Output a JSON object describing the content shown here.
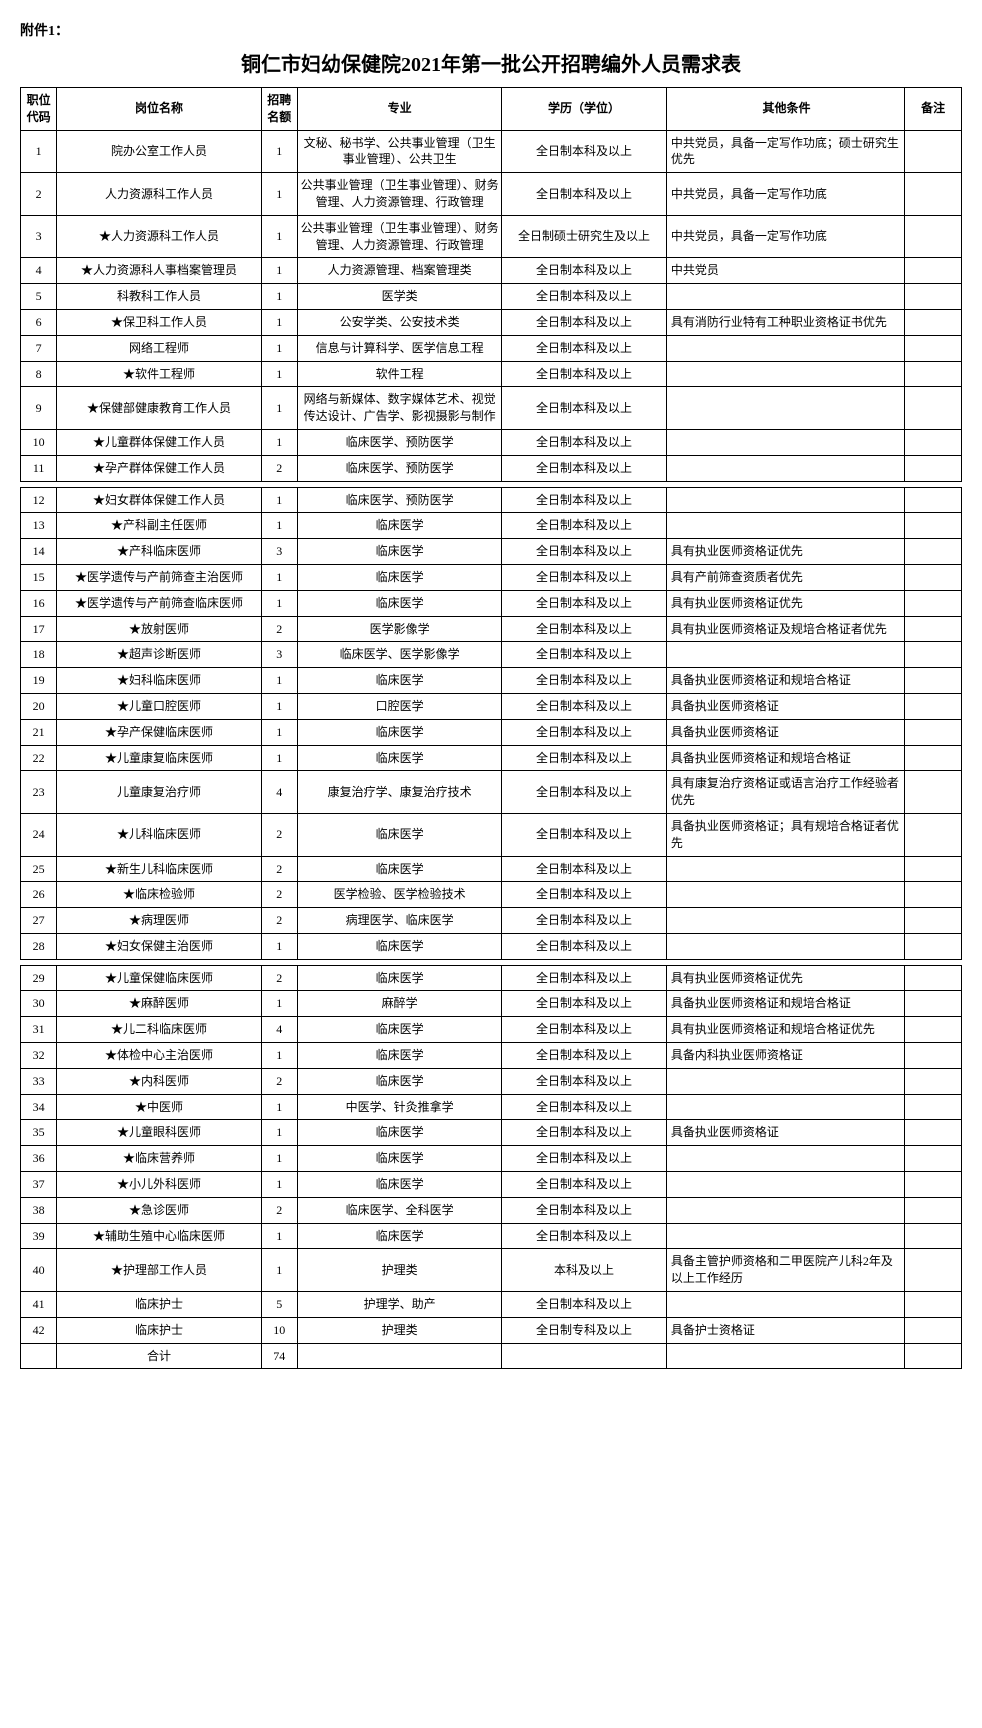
{
  "attachment_label": "附件1：",
  "title": "铜仁市妇幼保健院2021年第一批公开招聘编外人员需求表",
  "headers": {
    "code": "职位代码",
    "position": "岗位名称",
    "quota": "招聘名额",
    "major": "专业",
    "education": "学历（学位）",
    "other": "其他条件",
    "remark": "备注"
  },
  "rows": [
    {
      "code": "1",
      "position": "院办公室工作人员",
      "quota": "1",
      "major": "文秘、秘书学、公共事业管理（卫生事业管理）、公共卫生",
      "education": "全日制本科及以上",
      "other": "中共党员，具备一定写作功底；硕士研究生优先",
      "remark": ""
    },
    {
      "code": "2",
      "position": "人力资源科工作人员",
      "quota": "1",
      "major": "公共事业管理（卫生事业管理）、财务管理、人力资源管理、行政管理",
      "education": "全日制本科及以上",
      "other": "中共党员，具备一定写作功底",
      "remark": ""
    },
    {
      "code": "3",
      "position": "★人力资源科工作人员",
      "quota": "1",
      "major": "公共事业管理（卫生事业管理）、财务管理、人力资源管理、行政管理",
      "education": "全日制硕士研究生及以上",
      "other": "中共党员，具备一定写作功底",
      "remark": ""
    },
    {
      "code": "4",
      "position": "★人力资源科人事档案管理员",
      "quota": "1",
      "major": "人力资源管理、档案管理类",
      "education": "全日制本科及以上",
      "other": "中共党员",
      "remark": ""
    },
    {
      "code": "5",
      "position": "科教科工作人员",
      "quota": "1",
      "major": "医学类",
      "education": "全日制本科及以上",
      "other": "",
      "remark": ""
    },
    {
      "code": "6",
      "position": "★保卫科工作人员",
      "quota": "1",
      "major": "公安学类、公安技术类",
      "education": "全日制本科及以上",
      "other": "具有消防行业特有工种职业资格证书优先",
      "remark": ""
    },
    {
      "code": "7",
      "position": "网络工程师",
      "quota": "1",
      "major": "信息与计算科学、医学信息工程",
      "education": "全日制本科及以上",
      "other": "",
      "remark": ""
    },
    {
      "code": "8",
      "position": "★软件工程师",
      "quota": "1",
      "major": "软件工程",
      "education": "全日制本科及以上",
      "other": "",
      "remark": ""
    },
    {
      "code": "9",
      "position": "★保健部健康教育工作人员",
      "quota": "1",
      "major": "网络与新媒体、数字媒体艺术、视觉传达设计、广告学、影视摄影与制作",
      "education": "全日制本科及以上",
      "other": "",
      "remark": ""
    },
    {
      "code": "10",
      "position": "★儿童群体保健工作人员",
      "quota": "1",
      "major": "临床医学、预防医学",
      "education": "全日制本科及以上",
      "other": "",
      "remark": ""
    },
    {
      "code": "11",
      "position": "★孕产群体保健工作人员",
      "quota": "2",
      "major": "临床医学、预防医学",
      "education": "全日制本科及以上",
      "other": "",
      "remark": ""
    }
  ],
  "rows2": [
    {
      "code": "12",
      "position": "★妇女群体保健工作人员",
      "quota": "1",
      "major": "临床医学、预防医学",
      "education": "全日制本科及以上",
      "other": "",
      "remark": ""
    },
    {
      "code": "13",
      "position": "★产科副主任医师",
      "quota": "1",
      "major": "临床医学",
      "education": "全日制本科及以上",
      "other": "",
      "remark": ""
    },
    {
      "code": "14",
      "position": "★产科临床医师",
      "quota": "3",
      "major": "临床医学",
      "education": "全日制本科及以上",
      "other": "具有执业医师资格证优先",
      "remark": ""
    },
    {
      "code": "15",
      "position": "★医学遗传与产前筛查主治医师",
      "quota": "1",
      "major": "临床医学",
      "education": "全日制本科及以上",
      "other": "具有产前筛查资质者优先",
      "remark": ""
    },
    {
      "code": "16",
      "position": "★医学遗传与产前筛查临床医师",
      "quota": "1",
      "major": "临床医学",
      "education": "全日制本科及以上",
      "other": "具有执业医师资格证优先",
      "remark": ""
    },
    {
      "code": "17",
      "position": "★放射医师",
      "quota": "2",
      "major": "医学影像学",
      "education": "全日制本科及以上",
      "other": "具有执业医师资格证及规培合格证者优先",
      "remark": ""
    },
    {
      "code": "18",
      "position": "★超声诊断医师",
      "quota": "3",
      "major": "临床医学、医学影像学",
      "education": "全日制本科及以上",
      "other": "",
      "remark": ""
    },
    {
      "code": "19",
      "position": "★妇科临床医师",
      "quota": "1",
      "major": "临床医学",
      "education": "全日制本科及以上",
      "other": "具备执业医师资格证和规培合格证",
      "remark": ""
    },
    {
      "code": "20",
      "position": "★儿童口腔医师",
      "quota": "1",
      "major": "口腔医学",
      "education": "全日制本科及以上",
      "other": "具备执业医师资格证",
      "remark": ""
    },
    {
      "code": "21",
      "position": "★孕产保健临床医师",
      "quota": "1",
      "major": "临床医学",
      "education": "全日制本科及以上",
      "other": "具备执业医师资格证",
      "remark": ""
    },
    {
      "code": "22",
      "position": "★儿童康复临床医师",
      "quota": "1",
      "major": "临床医学",
      "education": "全日制本科及以上",
      "other": "具备执业医师资格证和规培合格证",
      "remark": ""
    },
    {
      "code": "23",
      "position": "儿童康复治疗师",
      "quota": "4",
      "major": "康复治疗学、康复治疗技术",
      "education": "全日制本科及以上",
      "other": "具有康复治疗资格证或语言治疗工作经验者优先",
      "remark": ""
    },
    {
      "code": "24",
      "position": "★儿科临床医师",
      "quota": "2",
      "major": "临床医学",
      "education": "全日制本科及以上",
      "other": "具备执业医师资格证；具有规培合格证者优先",
      "remark": ""
    },
    {
      "code": "25",
      "position": "★新生儿科临床医师",
      "quota": "2",
      "major": "临床医学",
      "education": "全日制本科及以上",
      "other": "",
      "remark": ""
    },
    {
      "code": "26",
      "position": "★临床检验师",
      "quota": "2",
      "major": "医学检验、医学检验技术",
      "education": "全日制本科及以上",
      "other": "",
      "remark": ""
    },
    {
      "code": "27",
      "position": "★病理医师",
      "quota": "2",
      "major": "病理医学、临床医学",
      "education": "全日制本科及以上",
      "other": "",
      "remark": ""
    },
    {
      "code": "28",
      "position": "★妇女保健主治医师",
      "quota": "1",
      "major": "临床医学",
      "education": "全日制本科及以上",
      "other": "",
      "remark": ""
    }
  ],
  "rows3": [
    {
      "code": "29",
      "position": "★儿童保健临床医师",
      "quota": "2",
      "major": "临床医学",
      "education": "全日制本科及以上",
      "other": "具有执业医师资格证优先",
      "remark": ""
    },
    {
      "code": "30",
      "position": "★麻醉医师",
      "quota": "1",
      "major": "麻醉学",
      "education": "全日制本科及以上",
      "other": "具备执业医师资格证和规培合格证",
      "remark": ""
    },
    {
      "code": "31",
      "position": "★儿二科临床医师",
      "quota": "4",
      "major": "临床医学",
      "education": "全日制本科及以上",
      "other": "具有执业医师资格证和规培合格证优先",
      "remark": ""
    },
    {
      "code": "32",
      "position": "★体检中心主治医师",
      "quota": "1",
      "major": "临床医学",
      "education": "全日制本科及以上",
      "other": "具备内科执业医师资格证",
      "remark": ""
    },
    {
      "code": "33",
      "position": "★内科医师",
      "quota": "2",
      "major": "临床医学",
      "education": "全日制本科及以上",
      "other": "",
      "remark": ""
    },
    {
      "code": "34",
      "position": "★中医师",
      "quota": "1",
      "major": "中医学、针灸推拿学",
      "education": "全日制本科及以上",
      "other": "",
      "remark": ""
    },
    {
      "code": "35",
      "position": "★儿童眼科医师",
      "quota": "1",
      "major": "临床医学",
      "education": "全日制本科及以上",
      "other": "具备执业医师资格证",
      "remark": ""
    },
    {
      "code": "36",
      "position": "★临床营养师",
      "quota": "1",
      "major": "临床医学",
      "education": "全日制本科及以上",
      "other": "",
      "remark": ""
    },
    {
      "code": "37",
      "position": "★小儿外科医师",
      "quota": "1",
      "major": "临床医学",
      "education": "全日制本科及以上",
      "other": "",
      "remark": ""
    },
    {
      "code": "38",
      "position": "★急诊医师",
      "quota": "2",
      "major": "临床医学、全科医学",
      "education": "全日制本科及以上",
      "other": "",
      "remark": ""
    },
    {
      "code": "39",
      "position": "★辅助生殖中心临床医师",
      "quota": "1",
      "major": "临床医学",
      "education": "全日制本科及以上",
      "other": "",
      "remark": ""
    },
    {
      "code": "40",
      "position": "★护理部工作人员",
      "quota": "1",
      "major": "护理类",
      "education": "本科及以上",
      "other": "具备主管护师资格和二甲医院产儿科2年及以上工作经历",
      "remark": ""
    },
    {
      "code": "41",
      "position": "临床护士",
      "quota": "5",
      "major": "护理学、助产",
      "education": "全日制本科及以上",
      "other": "",
      "remark": ""
    },
    {
      "code": "42",
      "position": "临床护士",
      "quota": "10",
      "major": "护理类",
      "education": "全日制专科及以上",
      "other": "具备护士资格证",
      "remark": ""
    }
  ],
  "total": {
    "label": "合计",
    "value": "74"
  }
}
